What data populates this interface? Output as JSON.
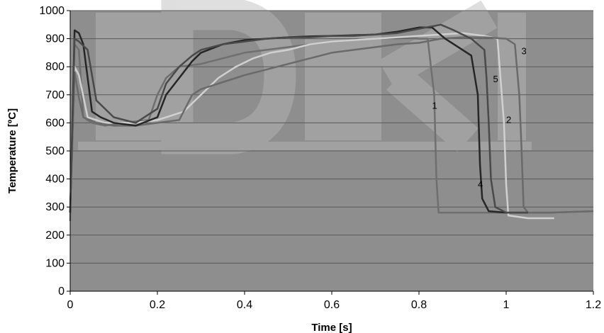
{
  "chart_data": {
    "type": "line",
    "title": "",
    "xlabel": "Time [s]",
    "ylabel": "Temperature [ºC]",
    "xlim": [
      0,
      1.2
    ],
    "ylim": [
      0,
      1000
    ],
    "xticks": [
      0,
      0.2,
      0.4,
      0.6,
      0.8,
      1,
      1.2
    ],
    "xtick_labels": [
      "0",
      "0.2",
      "0.4",
      "0.6",
      "0.8",
      "1",
      "1.2"
    ],
    "yticks": [
      0,
      100,
      200,
      300,
      400,
      500,
      600,
      700,
      800,
      900,
      1000
    ],
    "ytick_labels": [
      "0",
      "100",
      "200",
      "300",
      "400",
      "500",
      "600",
      "700",
      "800",
      "900",
      "1000"
    ],
    "grid": "horizontal",
    "legend": "none",
    "colors": {
      "plot_bg": "#8e8e8e",
      "grid": "#5a5a5a",
      "watermark": "#a9a9a9"
    },
    "series": [
      {
        "label": "1",
        "color": "#6f6f6f",
        "points": [
          [
            0,
            250
          ],
          [
            0.005,
            600
          ],
          [
            0.01,
            880
          ],
          [
            0.02,
            860
          ],
          [
            0.03,
            620
          ],
          [
            0.05,
            600
          ],
          [
            0.08,
            590
          ],
          [
            0.12,
            600
          ],
          [
            0.18,
            610
          ],
          [
            0.2,
            700
          ],
          [
            0.22,
            760
          ],
          [
            0.25,
            800
          ],
          [
            0.3,
            810
          ],
          [
            0.35,
            830
          ],
          [
            0.4,
            850
          ],
          [
            0.45,
            860
          ],
          [
            0.5,
            870
          ],
          [
            0.55,
            880
          ],
          [
            0.6,
            890
          ],
          [
            0.65,
            895
          ],
          [
            0.7,
            900
          ],
          [
            0.75,
            905
          ],
          [
            0.8,
            900
          ],
          [
            0.82,
            900
          ],
          [
            0.835,
            700
          ],
          [
            0.84,
            400
          ],
          [
            0.845,
            280
          ],
          [
            0.9,
            280
          ],
          [
            1.0,
            280
          ],
          [
            1.1,
            280
          ],
          [
            1.2,
            285
          ]
        ]
      },
      {
        "label": "2",
        "color": "#d0d0d0",
        "points": [
          [
            0,
            280
          ],
          [
            0.01,
            800
          ],
          [
            0.02,
            770
          ],
          [
            0.04,
            620
          ],
          [
            0.08,
            600
          ],
          [
            0.15,
            600
          ],
          [
            0.2,
            610
          ],
          [
            0.22,
            620
          ],
          [
            0.26,
            640
          ],
          [
            0.3,
            700
          ],
          [
            0.34,
            760
          ],
          [
            0.38,
            800
          ],
          [
            0.42,
            830
          ],
          [
            0.46,
            850
          ],
          [
            0.5,
            860
          ],
          [
            0.55,
            880
          ],
          [
            0.6,
            890
          ],
          [
            0.65,
            895
          ],
          [
            0.7,
            900
          ],
          [
            0.75,
            905
          ],
          [
            0.8,
            910
          ],
          [
            0.85,
            915
          ],
          [
            0.9,
            920
          ],
          [
            0.95,
            910
          ],
          [
            0.98,
            900
          ],
          [
            0.995,
            600
          ],
          [
            1.0,
            380
          ],
          [
            1.005,
            270
          ],
          [
            1.05,
            260
          ],
          [
            1.11,
            260
          ]
        ]
      },
      {
        "label": "3",
        "color": "#6a6a6a",
        "points": [
          [
            0,
            280
          ],
          [
            0.01,
            780
          ],
          [
            0.02,
            690
          ],
          [
            0.03,
            620
          ],
          [
            0.06,
            600
          ],
          [
            0.1,
            590
          ],
          [
            0.15,
            590
          ],
          [
            0.2,
            600
          ],
          [
            0.25,
            610
          ],
          [
            0.28,
            700
          ],
          [
            0.3,
            720
          ],
          [
            0.32,
            730
          ],
          [
            0.36,
            750
          ],
          [
            0.4,
            770
          ],
          [
            0.45,
            790
          ],
          [
            0.5,
            810
          ],
          [
            0.55,
            830
          ],
          [
            0.6,
            850
          ],
          [
            0.65,
            860
          ],
          [
            0.7,
            870
          ],
          [
            0.75,
            880
          ],
          [
            0.8,
            885
          ],
          [
            0.85,
            900
          ],
          [
            0.9,
            905
          ],
          [
            0.95,
            905
          ],
          [
            1.0,
            900
          ],
          [
            1.02,
            880
          ],
          [
            1.03,
            700
          ],
          [
            1.035,
            520
          ],
          [
            1.04,
            300
          ],
          [
            1.05,
            280
          ],
          [
            1.1,
            280
          ],
          [
            1.2,
            285
          ]
        ]
      },
      {
        "label": "4",
        "color": "#262626",
        "points": [
          [
            0,
            280
          ],
          [
            0.01,
            930
          ],
          [
            0.02,
            920
          ],
          [
            0.03,
            880
          ],
          [
            0.05,
            640
          ],
          [
            0.07,
            620
          ],
          [
            0.1,
            600
          ],
          [
            0.15,
            590
          ],
          [
            0.2,
            620
          ],
          [
            0.22,
            700
          ],
          [
            0.25,
            760
          ],
          [
            0.28,
            820
          ],
          [
            0.3,
            850
          ],
          [
            0.35,
            880
          ],
          [
            0.4,
            895
          ],
          [
            0.45,
            900
          ],
          [
            0.5,
            905
          ],
          [
            0.55,
            908
          ],
          [
            0.6,
            910
          ],
          [
            0.65,
            912
          ],
          [
            0.7,
            915
          ],
          [
            0.75,
            925
          ],
          [
            0.8,
            940
          ],
          [
            0.83,
            940
          ],
          [
            0.86,
            900
          ],
          [
            0.9,
            860
          ],
          [
            0.92,
            840
          ],
          [
            0.935,
            700
          ],
          [
            0.94,
            450
          ],
          [
            0.945,
            330
          ],
          [
            0.96,
            285
          ],
          [
            1.0,
            280
          ],
          [
            1.05,
            280
          ]
        ]
      },
      {
        "label": "5",
        "color": "#4a4a4a",
        "points": [
          [
            0,
            280
          ],
          [
            0.01,
            900
          ],
          [
            0.02,
            890
          ],
          [
            0.04,
            860
          ],
          [
            0.06,
            680
          ],
          [
            0.08,
            650
          ],
          [
            0.1,
            620
          ],
          [
            0.15,
            600
          ],
          [
            0.2,
            650
          ],
          [
            0.22,
            740
          ],
          [
            0.25,
            800
          ],
          [
            0.28,
            840
          ],
          [
            0.3,
            860
          ],
          [
            0.35,
            880
          ],
          [
            0.4,
            890
          ],
          [
            0.45,
            900
          ],
          [
            0.5,
            905
          ],
          [
            0.55,
            905
          ],
          [
            0.6,
            910
          ],
          [
            0.65,
            910
          ],
          [
            0.7,
            915
          ],
          [
            0.75,
            920
          ],
          [
            0.8,
            935
          ],
          [
            0.85,
            950
          ],
          [
            0.88,
            930
          ],
          [
            0.92,
            900
          ],
          [
            0.95,
            860
          ],
          [
            0.955,
            760
          ],
          [
            0.96,
            600
          ],
          [
            0.965,
            400
          ],
          [
            0.975,
            300
          ],
          [
            1.0,
            280
          ],
          [
            1.05,
            280
          ]
        ]
      }
    ]
  }
}
